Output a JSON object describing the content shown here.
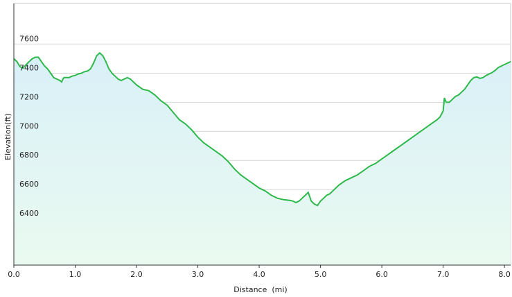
{
  "chart_data": {
    "type": "area",
    "xlabel": "Distance  (mi)",
    "ylabel": "Elevation(ft)",
    "xlim": [
      0,
      8.1
    ],
    "ylim": [
      6080,
      7880
    ],
    "x_ticks": [
      "0.0",
      "1.0",
      "2.0",
      "3.0",
      "4.0",
      "5.0",
      "6.0",
      "7.0",
      "8.0"
    ],
    "x_tick_values": [
      0,
      1,
      2,
      3,
      4,
      5,
      6,
      7,
      8
    ],
    "y_ticks": [
      "6400",
      "6600",
      "6800",
      "7000",
      "7200",
      "7400",
      "7600"
    ],
    "y_tick_values": [
      6400,
      6600,
      6800,
      7000,
      7200,
      7400,
      7600
    ],
    "grid": true,
    "legend": "none",
    "colors": {
      "line": "#2db84a",
      "fill_top": "#d9f0f8",
      "fill_bottom": "#eafaf0",
      "grid": "#d4d4d4",
      "axis": "#333333",
      "frame": "#c8c8c8"
    },
    "series": [
      {
        "x": [
          0.0,
          0.05,
          0.1,
          0.15,
          0.2,
          0.25,
          0.3,
          0.35,
          0.4,
          0.45,
          0.5,
          0.55,
          0.6,
          0.65,
          0.7,
          0.75,
          0.78,
          0.8,
          0.82,
          0.9,
          0.95,
          1.0,
          1.05,
          1.1,
          1.15,
          1.2,
          1.25,
          1.3,
          1.35,
          1.4,
          1.45,
          1.5,
          1.55,
          1.6,
          1.65,
          1.7,
          1.75,
          1.8,
          1.85,
          1.9,
          1.95,
          2.0,
          2.1,
          2.2,
          2.3,
          2.4,
          2.5,
          2.6,
          2.7,
          2.8,
          2.9,
          3.0,
          3.1,
          3.2,
          3.3,
          3.4,
          3.5,
          3.6,
          3.7,
          3.8,
          3.9,
          4.0,
          4.1,
          4.2,
          4.3,
          4.4,
          4.5,
          4.55,
          4.6,
          4.65,
          4.7,
          4.75,
          4.8,
          4.85,
          4.9,
          4.95,
          5.0,
          5.05,
          5.1,
          5.15,
          5.2,
          5.3,
          5.4,
          5.5,
          5.6,
          5.7,
          5.8,
          5.9,
          6.0,
          6.1,
          6.2,
          6.3,
          6.4,
          6.5,
          6.6,
          6.7,
          6.8,
          6.9,
          6.95,
          7.0,
          7.02,
          7.05,
          7.1,
          7.15,
          7.2,
          7.25,
          7.3,
          7.35,
          7.4,
          7.45,
          7.5,
          7.55,
          7.6,
          7.65,
          7.7,
          7.75,
          7.8,
          7.85,
          7.9,
          7.95,
          8.0,
          8.05,
          8.1
        ],
        "values": [
          7500,
          7480,
          7445,
          7435,
          7460,
          7480,
          7500,
          7510,
          7510,
          7480,
          7450,
          7430,
          7400,
          7370,
          7360,
          7350,
          7340,
          7360,
          7370,
          7370,
          7380,
          7385,
          7395,
          7400,
          7410,
          7415,
          7430,
          7470,
          7520,
          7540,
          7520,
          7480,
          7430,
          7400,
          7380,
          7360,
          7350,
          7360,
          7370,
          7360,
          7340,
          7320,
          7290,
          7280,
          7250,
          7210,
          7180,
          7130,
          7080,
          7050,
          7010,
          6960,
          6920,
          6890,
          6860,
          6830,
          6790,
          6740,
          6700,
          6670,
          6640,
          6610,
          6590,
          6560,
          6540,
          6530,
          6525,
          6520,
          6510,
          6520,
          6540,
          6560,
          6580,
          6520,
          6500,
          6490,
          6520,
          6540,
          6560,
          6570,
          6590,
          6630,
          6660,
          6680,
          6700,
          6730,
          6760,
          6780,
          6810,
          6840,
          6870,
          6900,
          6930,
          6960,
          6990,
          7020,
          7050,
          7080,
          7100,
          7140,
          7230,
          7200,
          7200,
          7220,
          7240,
          7250,
          7270,
          7290,
          7320,
          7350,
          7370,
          7375,
          7365,
          7370,
          7385,
          7395,
          7405,
          7420,
          7440,
          7450,
          7460,
          7470,
          7480
        ]
      }
    ]
  }
}
